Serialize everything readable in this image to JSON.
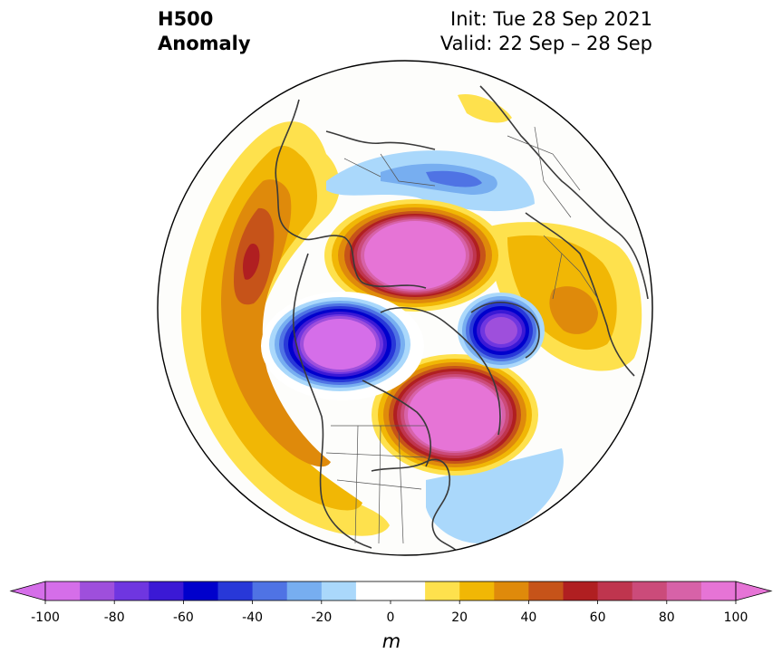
{
  "header": {
    "title_line1": "H500",
    "title_line2": "Anomaly",
    "init_text": "Init: Tue 28 Sep 2021",
    "valid_text": "Valid: 22 Sep – 28 Sep"
  },
  "colorbar": {
    "levels": [
      -100,
      -90,
      -80,
      -70,
      -60,
      -50,
      -40,
      -30,
      -20,
      -10,
      0,
      10,
      20,
      30,
      40,
      50,
      60,
      70,
      80,
      90,
      100
    ],
    "colors": [
      "#d56ee9",
      "#9e4fdc",
      "#6f36e0",
      "#3b19d5",
      "#0000cc",
      "#2838d8",
      "#4f73e4",
      "#77aef0",
      "#aad8fb",
      "#ffffff",
      "#ffffff",
      "#fee14d",
      "#f1b705",
      "#df8a0b",
      "#c65319",
      "#b01f21",
      "#bf354e",
      "#cb4b7a",
      "#d762a8",
      "#e674d6"
    ],
    "under_color": "#d56ee9",
    "over_color": "#e674d6",
    "tick_labels": [
      "-100",
      "-80",
      "-60",
      "-40",
      "-20",
      "0",
      "20",
      "40",
      "60",
      "80",
      "100"
    ],
    "unit_label": "m"
  },
  "map": {
    "projection": "north-polar-stereographic",
    "field": "500 hPa geopotential height anomaly"
  }
}
